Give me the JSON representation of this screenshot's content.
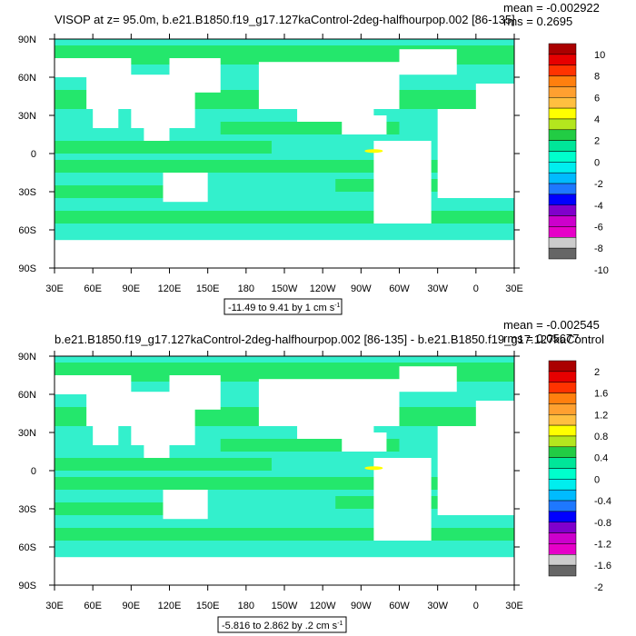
{
  "chart_data": [
    {
      "type": "heatmap",
      "title": "VISOP at z=  95.0m, b.e21.B1850.f19_g17.127kaControl-2deg-halfhourpop.002 [86-135]",
      "stats": {
        "mean": "mean = -0.002922",
        "rms": "rms = 0.2695"
      },
      "range_label": "-11.49 to 9.41 by 1 cm s",
      "range_unit_exp": "-1",
      "x_ticks": [
        "30E",
        "60E",
        "90E",
        "120E",
        "150E",
        "180",
        "150W",
        "120W",
        "90W",
        "60W",
        "30W",
        "0",
        "30E"
      ],
      "y_ticks": [
        "90N",
        "60N",
        "30N",
        "0",
        "30S",
        "60S",
        "90S"
      ],
      "colorbar": {
        "labels": [
          "10",
          "8",
          "6",
          "4",
          "2",
          "0",
          "-2",
          "-4",
          "-6",
          "-8",
          "-10"
        ],
        "colors": [
          "#aa0000",
          "#e60000",
          "#ff3300",
          "#ff7f0e",
          "#ffa030",
          "#ffbf40",
          "#ffff00",
          "#b4e61e",
          "#22cc44",
          "#00e699",
          "#00ffcc",
          "#00eeee",
          "#00bbff",
          "#1e78ff",
          "#0000ff",
          "#8000cc",
          "#cc00cc",
          "#e600c8",
          "#cccccc",
          "#666666"
        ]
      },
      "dominant_colors": {
        "positive": "#22e55a",
        "negative": "#33f0cc",
        "land": "#ffffff"
      }
    },
    {
      "type": "heatmap",
      "title": "b.e21.B1850.f19_g17.127kaControl-2deg-halfhourpop.002 [86-135] - b.e21.B1850.f19_g17.127kaControl",
      "stats": {
        "mean": "mean = -0.002545",
        "rms": "rms = 0.05677"
      },
      "range_label": "-5.816 to 2.862 by .2 cm s",
      "range_unit_exp": "-1",
      "x_ticks": [
        "30E",
        "60E",
        "90E",
        "120E",
        "150E",
        "180",
        "150W",
        "120W",
        "90W",
        "60W",
        "30W",
        "0",
        "30E"
      ],
      "y_ticks": [
        "90N",
        "60N",
        "30N",
        "0",
        "30S",
        "60S",
        "90S"
      ],
      "colorbar": {
        "labels": [
          "2",
          "1.6",
          "1.2",
          "0.8",
          "0.4",
          "0",
          "-0.4",
          "-0.8",
          "-1.2",
          "-1.6",
          "-2"
        ],
        "colors": [
          "#aa0000",
          "#e60000",
          "#ff3300",
          "#ff7f0e",
          "#ffa030",
          "#ffbf40",
          "#ffff00",
          "#b4e61e",
          "#22cc44",
          "#00e699",
          "#00ffcc",
          "#00eeee",
          "#00bbff",
          "#1e78ff",
          "#0000ff",
          "#8000cc",
          "#cc00cc",
          "#e600c8",
          "#cccccc",
          "#666666"
        ]
      },
      "dominant_colors": {
        "positive": "#22e55a",
        "negative": "#33f0cc",
        "land": "#ffffff"
      }
    }
  ]
}
